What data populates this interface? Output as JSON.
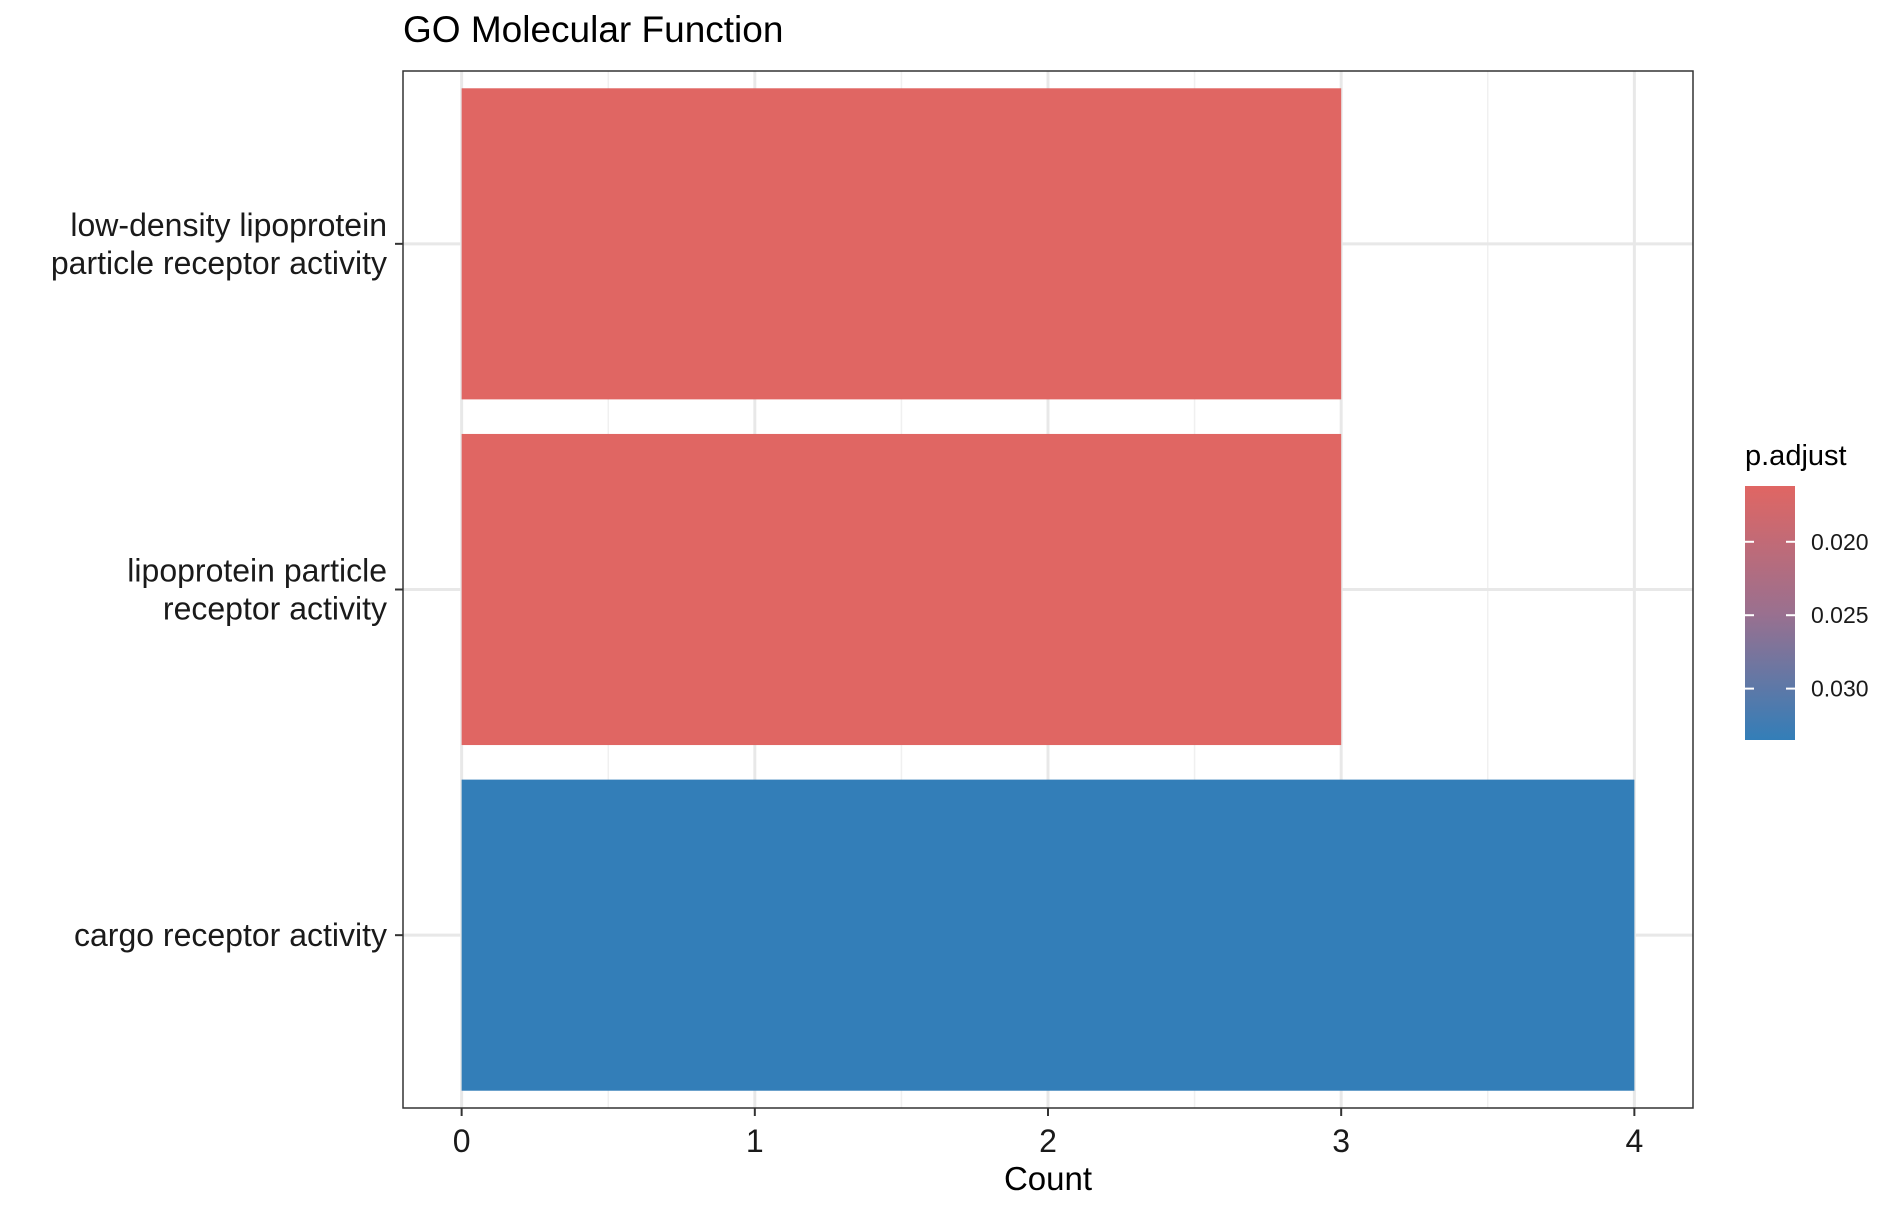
{
  "chart_data": {
    "type": "bar",
    "orientation": "horizontal",
    "title": "GO Molecular Function",
    "xlabel": "Count",
    "ylabel": "",
    "categories": [
      "low-density lipoprotein\nparticle receptor activity",
      "lipoprotein particle\nreceptor activity",
      "cargo receptor activity"
    ],
    "values": [
      3,
      3,
      4
    ],
    "p_adjust": [
      0.0162,
      0.0162,
      0.0335
    ],
    "bar_colors": [
      "#e06663",
      "#e06663",
      "#337eb8"
    ],
    "xlim": [
      -0.2,
      4.2
    ],
    "xticks": [
      0,
      1,
      2,
      3,
      4
    ],
    "xtick_labels": [
      "0",
      "1",
      "2",
      "3",
      "4"
    ],
    "grid": true,
    "legend": {
      "title": "p.adjust",
      "position": "right",
      "range": [
        0.0162,
        0.0335
      ],
      "ticks": [
        0.02,
        0.025,
        0.03
      ],
      "tick_labels": [
        "0.020",
        "0.025",
        "0.030"
      ],
      "color_low": "#e06663",
      "color_high": "#337eb8"
    }
  }
}
